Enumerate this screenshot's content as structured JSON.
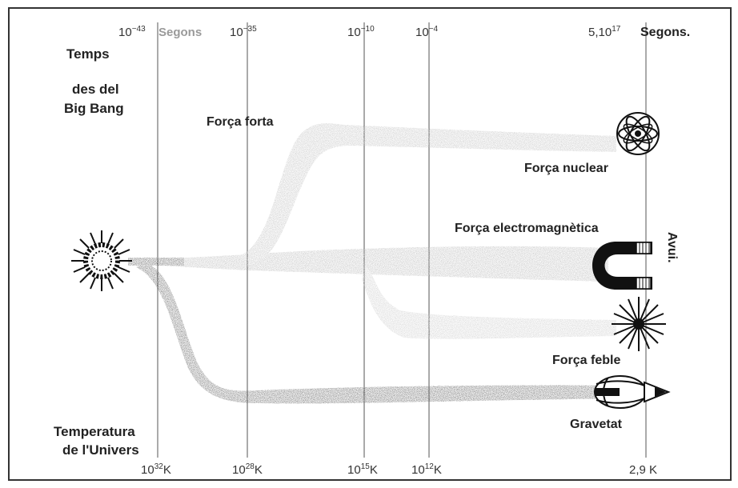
{
  "top_axis": {
    "t1": {
      "base": "10",
      "exp": "−43"
    },
    "unit1": "Segons",
    "t2": {
      "base": "10",
      "exp": "−35"
    },
    "t3": {
      "base": "10",
      "exp": "−10"
    },
    "t4": {
      "base": "10",
      "exp": "−4"
    },
    "t5": {
      "base": "5,10",
      "exp": "17"
    },
    "unit2": "Segons."
  },
  "left_header": {
    "line1": "Temps",
    "line2": "des del",
    "line3": "Big Bang"
  },
  "forces": {
    "strong": "Força forta",
    "nuclear": "Força nuclear",
    "electromagnetic": "Força electromagnètica",
    "weak": "Força feble",
    "gravity": "Gravetat"
  },
  "today_label": "Avui.",
  "bottom_header": {
    "line1": "Temperatura",
    "line2": "de l'Univers"
  },
  "bottom_axis": {
    "k1": {
      "base": "10",
      "exp": "32",
      "unit": "K"
    },
    "k2": {
      "base": "10",
      "exp": "28",
      "unit": "K"
    },
    "k3": {
      "base": "10",
      "exp": "15",
      "unit": "K"
    },
    "k4": {
      "base": "10",
      "exp": "12",
      "unit": "K"
    },
    "k5": {
      "text": "2,9 K"
    }
  },
  "colors": {
    "ink": "#222222",
    "band_light": "#c8c8c8",
    "band_dark": "#555555"
  }
}
